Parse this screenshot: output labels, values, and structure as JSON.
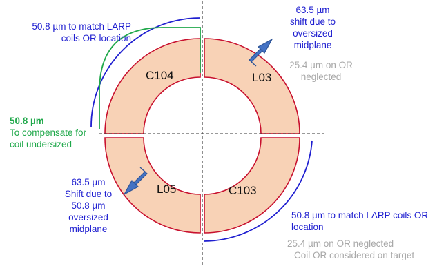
{
  "quadrants": {
    "top_left": "C104",
    "top_right": "L03",
    "bottom_left": "L05",
    "bottom_right": "C103"
  },
  "annotations": {
    "tl_blue": [
      "50.8 µm to match LARP",
      "coils OR location"
    ],
    "green_value": "50.8 µm",
    "green_text": [
      "To compensate for",
      "coil undersized"
    ],
    "tr_blue": [
      "63.5 µm",
      "shift due to",
      "oversized",
      "midplane"
    ],
    "tr_gray": [
      "25.4 µm on OR",
      "neglected"
    ],
    "bl_blue": [
      "63.5 µm",
      "Shift due to",
      "50.8 µm",
      "oversized",
      "midplane"
    ],
    "br_blue": [
      "50.8 µm to match LARP coils OR",
      "location"
    ],
    "br_gray": [
      "25.4 µm on OR neglected",
      "Coil OR considered on target"
    ]
  },
  "colors": {
    "ring_fill": "#f8d2b6",
    "ring_stroke": "#c8102e",
    "annotation_blue": "#1f1fd0",
    "annotation_green": "#1fa84a",
    "annotation_gray": "#a8a8a8",
    "arrow_fill": "#4472c4",
    "arrow_stroke": "#2f5597",
    "axis_line": "#333333"
  }
}
